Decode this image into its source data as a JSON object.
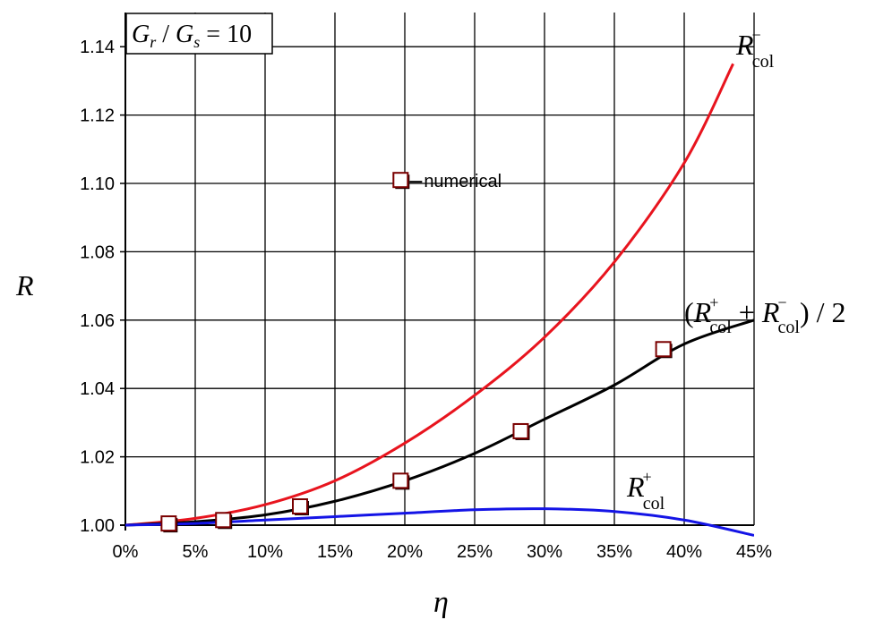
{
  "chart_data": {
    "type": "line",
    "xlabel": "η",
    "ylabel": "R",
    "xlim": [
      0,
      45
    ],
    "ylim": [
      1.0,
      1.15
    ],
    "x_tick_labels": [
      "0%",
      "5%",
      "10%",
      "15%",
      "20%",
      "25%",
      "30%",
      "35%",
      "40%",
      "45%"
    ],
    "y_tick_labels": [
      "1.00",
      "1.02",
      "1.04",
      "1.06",
      "1.08",
      "1.10",
      "1.12",
      "1.14"
    ],
    "grid": true,
    "series": [
      {
        "name": "R_col^-",
        "color": "#e8141e",
        "x": [
          0,
          5,
          10,
          15,
          20,
          25,
          30,
          35,
          40,
          43.5
        ],
        "y": [
          1.0,
          1.002,
          1.006,
          1.013,
          1.024,
          1.038,
          1.055,
          1.077,
          1.106,
          1.135
        ]
      },
      {
        "name": "(R_col^+ + R_col^-)/2",
        "color": "#000000",
        "x": [
          0,
          5,
          10,
          15,
          20,
          25,
          30,
          35,
          40,
          45
        ],
        "y": [
          1.0,
          1.001,
          1.003,
          1.007,
          1.013,
          1.021,
          1.031,
          1.041,
          1.053,
          1.06
        ]
      },
      {
        "name": "R_col^+",
        "color": "#1414e6",
        "x": [
          0,
          5,
          10,
          15,
          20,
          25,
          30,
          35,
          40,
          45
        ],
        "y": [
          1.0,
          1.0005,
          1.0015,
          1.0025,
          1.0035,
          1.0045,
          1.0048,
          1.004,
          1.0015,
          0.997
        ]
      }
    ],
    "numerical_points": {
      "name": "numerical",
      "x": [
        3.1,
        7.0,
        12.5,
        19.7,
        28.3,
        38.5
      ],
      "y": [
        1.0005,
        1.0015,
        1.0055,
        1.013,
        1.0275,
        1.0515
      ]
    },
    "legend_marker": {
      "x": 19.7,
      "y": 1.101,
      "label": "numerical"
    },
    "annotations": {
      "ratio": {
        "G1": "G",
        "sub1": "r",
        "slash": " / ",
        "G2": "G",
        "sub2": "s",
        "eq": " = 10"
      },
      "rminus": {
        "R": "R",
        "sup": "−",
        "sub": "col"
      },
      "rplus": {
        "R": "R",
        "sup": "+",
        "sub": "col"
      },
      "avg": {
        "open": "(",
        "R1": "R",
        "sup1": "+",
        "sub1": "col",
        "plus": " + ",
        "R2": "R",
        "sup2": "−",
        "sub2": "col",
        "close": ") / 2"
      }
    }
  }
}
